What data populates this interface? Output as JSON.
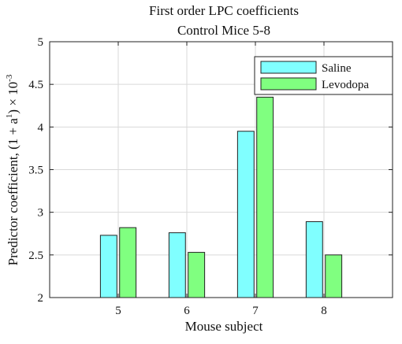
{
  "chart_data": {
    "type": "bar",
    "title": "First order LPC coefficients",
    "subtitle": "Control Mice 5-8",
    "xlabel": "Mouse subject",
    "ylabel": "Predictor coefficient, (1 + a¹) × 10⁻³",
    "ylabel_parts": {
      "main": "Predictor coefficient, (1 + a",
      "sup1": "1",
      "mid": ") × 10",
      "sup2": "-3"
    },
    "categories": [
      "5",
      "6",
      "7",
      "8"
    ],
    "xlim": [
      4,
      9
    ],
    "ylim": [
      2,
      5
    ],
    "yticks": [
      "2",
      "2.5",
      "3",
      "3.5",
      "4",
      "4.5",
      "5"
    ],
    "grid": true,
    "legend_position": "top-right",
    "series": [
      {
        "name": "Saline",
        "color": "#80ffff",
        "values": [
          2.73,
          2.76,
          3.95,
          2.89
        ]
      },
      {
        "name": "Levodopa",
        "color": "#80ff80",
        "values": [
          2.82,
          2.53,
          4.35,
          2.5
        ]
      }
    ]
  }
}
